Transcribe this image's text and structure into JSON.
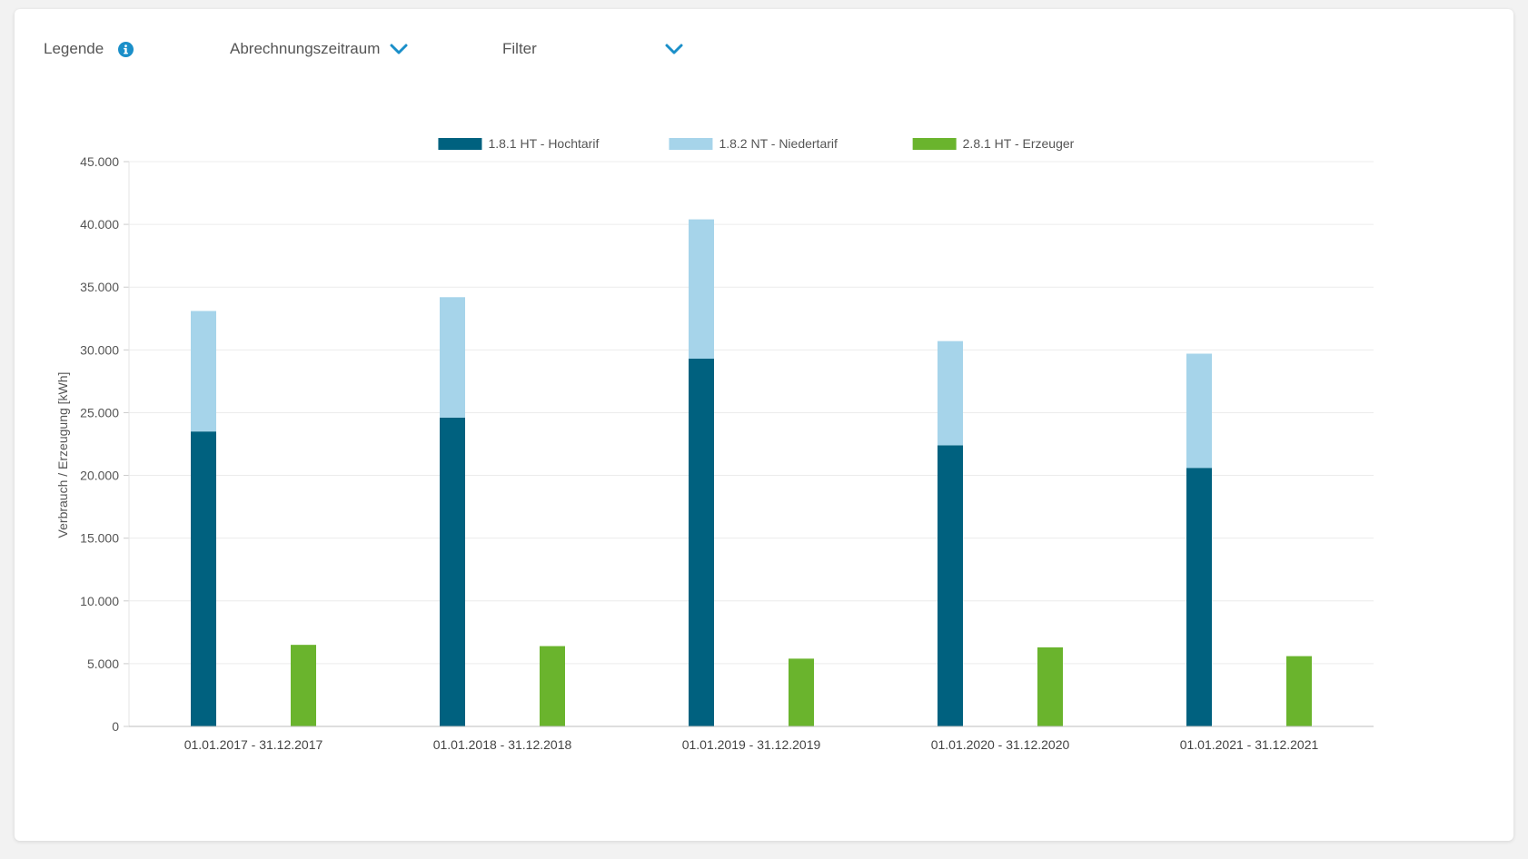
{
  "toolbar": {
    "legend_label": "Legende",
    "period_label": "Abrechnungszeitraum",
    "filter_label": "Filter",
    "icons": {
      "info": "info-icon",
      "chevron": "chevron-down-icon"
    },
    "accent_color": "#1a8fc9"
  },
  "chart_data": {
    "type": "bar",
    "stacked": true,
    "title": "",
    "xlabel": "",
    "ylabel": "Verbrauch / Erzeugung [kWh]",
    "ylim": [
      0,
      45000
    ],
    "yticks": [
      0,
      5000,
      10000,
      15000,
      20000,
      25000,
      30000,
      35000,
      40000,
      45000
    ],
    "ytick_labels": [
      "0",
      "5.000",
      "10.000",
      "15.000",
      "20.000",
      "25.000",
      "30.000",
      "35.000",
      "40.000",
      "45.000"
    ],
    "grid": true,
    "legend_position": "top",
    "categories": [
      "01.01.2017 - 31.12.2017",
      "01.01.2018 - 31.12.2018",
      "01.01.2019 - 31.12.2019",
      "01.01.2020 - 31.12.2020",
      "01.01.2021 - 31.12.2021"
    ],
    "series": [
      {
        "name": "1.8.1 HT - Hochtarif",
        "stack": "consumption",
        "color": "#00617f",
        "values": [
          23500,
          24600,
          29300,
          22400,
          20600
        ]
      },
      {
        "name": "1.8.2 NT - Niedertarif",
        "stack": "consumption",
        "color": "#a6d4ea",
        "values": [
          9600,
          9600,
          11100,
          8300,
          9100
        ]
      },
      {
        "name": "2.8.1 HT - Erzeuger",
        "stack": "production",
        "color": "#6ab42d",
        "values": [
          6500,
          6400,
          5400,
          6300,
          5600
        ]
      }
    ]
  }
}
